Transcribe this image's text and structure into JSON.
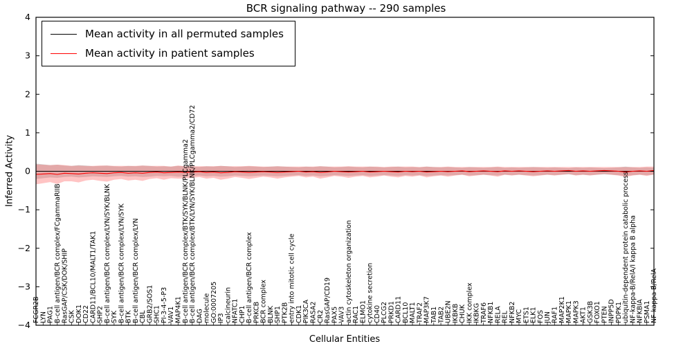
{
  "chart_data": {
    "type": "line",
    "title": "BCR signaling pathway -- 290 samples",
    "xlabel": "Cellular Entities",
    "ylabel": "Inferred Activity",
    "sample_count": 290,
    "ylim": [
      -4,
      4
    ],
    "yticks": [
      -4,
      -3,
      -2,
      -1,
      0,
      1,
      2,
      3,
      4
    ],
    "grid": false,
    "legend_position": "upper left",
    "categories": [
      "FCGR2B",
      "LYN",
      "PAG1",
      "B-cell antigen/BCR complex/FCgammaRIIB",
      "RasGAP/CSK/DOK/SHIP",
      "CSK",
      "DOK1",
      "CD22",
      "CARD11/BCL10/MALT1/TAK1",
      "SHP2",
      "B-cell antigen/BCR complex/LYN/SYK/BLNK",
      "SYK",
      "B-cell antigen/BCR complex/LYN/SYK",
      "BTK",
      "B-cell antigen/BCR complex/LYN",
      "CBL",
      "GRB2/SOS1",
      "SHC1",
      "PI-3-4-5-P3",
      "VAV1",
      "MAP4K1",
      "B-cell antigen/BCR complex/BTK/SYK/BLNK/PLCgamma2",
      "B-cell antigen/BCR complex/BTK/LYN/SYK/BLNK/PLCgamma2/CD72",
      "DAG",
      "molecule",
      "GO:0007205",
      "IP3",
      "calcineurin",
      "NFATC1",
      "CHP1",
      "B-cell antigen/BCR complex",
      "PRKCB",
      "BCR complex",
      "BLNK",
      "SHP1",
      "PTK2B",
      "entry into mitotic cell cycle",
      "CDK1",
      "PIK3CA",
      "RASA2",
      "CR2",
      "RasGAP/CD19",
      "PAX5",
      "VAV3",
      "actin cytoskeleton organization",
      "RAC1",
      "ELMO1",
      "cytokine secretion",
      "CD40",
      "PLCG2",
      "PRKD1",
      "CARD11",
      "BCL10",
      "MALT1",
      "TRAF2",
      "MAP3K7",
      "TAB1",
      "TAB2",
      "UBE2N",
      "IKBKB",
      "CHUK",
      "IKK complex",
      "IKBKG",
      "TRAF6",
      "NFKB1",
      "RELA",
      "REL",
      "NFKB2",
      "MYC",
      "ETS1",
      "ELK1",
      "FOS",
      "JUN",
      "RAF1",
      "MAP2K1",
      "MAPK1",
      "MAPK3",
      "AKT1",
      "GSK3B",
      "FOXO1",
      "PTEN",
      "INPP5D",
      "PDPK1",
      "ubiquitin-dependent protein catabolic process",
      "NF-kappa-B/RelA/I kappa B alpha",
      "NFKBIA",
      "PSMA1",
      "NF-kappa-B/RelA"
    ],
    "series": [
      {
        "name": "Mean activity in all permuted samples",
        "color": "#000000",
        "band_color": "#bdbdbd",
        "band_opacity": 0.65,
        "mean": 0,
        "band_halfwidth": [
          0.2,
          0.18,
          0.16,
          0.17,
          0.15,
          0.14,
          0.16,
          0.15,
          0.13,
          0.14,
          0.15,
          0.13,
          0.12,
          0.14,
          0.13,
          0.15,
          0.14,
          0.12,
          0.13,
          0.12,
          0.14,
          0.13,
          0.12,
          0.11,
          0.13,
          0.12,
          0.14,
          0.13,
          0.11,
          0.12,
          0.13,
          0.12,
          0.11,
          0.12,
          0.13,
          0.12,
          0.11,
          0.1,
          0.12,
          0.11,
          0.13,
          0.12,
          0.1,
          0.11,
          0.12,
          0.11,
          0.1,
          0.12,
          0.11,
          0.1,
          0.11,
          0.12,
          0.1,
          0.11,
          0.1,
          0.12,
          0.11,
          0.1,
          0.11,
          0.1,
          0.09,
          0.11,
          0.1,
          0.09,
          0.1,
          0.11,
          0.09,
          0.1,
          0.09,
          0.1,
          0.11,
          0.1,
          0.09,
          0.1,
          0.09,
          0.08,
          0.1,
          0.09,
          0.1,
          0.09,
          0.08,
          0.09,
          0.1,
          0.12,
          0.1,
          0.09,
          0.1,
          0.09
        ]
      },
      {
        "name": "Mean activity in patient samples",
        "color": "#ff0000",
        "band_color": "#ff5555",
        "band_opacity": 0.35,
        "mean": [
          -0.08,
          -0.07,
          -0.06,
          -0.08,
          -0.05,
          -0.06,
          -0.07,
          -0.05,
          -0.04,
          -0.05,
          -0.06,
          -0.04,
          -0.03,
          -0.05,
          -0.04,
          -0.05,
          -0.03,
          -0.02,
          -0.04,
          -0.03,
          -0.02,
          -0.03,
          -0.02,
          -0.01,
          -0.03,
          -0.02,
          -0.04,
          -0.03,
          -0.01,
          -0.02,
          -0.03,
          -0.02,
          -0.01,
          -0.02,
          -0.03,
          -0.02,
          -0.01,
          0.0,
          -0.02,
          -0.01,
          -0.03,
          -0.02,
          0.0,
          -0.01,
          -0.02,
          -0.01,
          0.0,
          -0.02,
          -0.01,
          0.0,
          -0.01,
          -0.02,
          0.0,
          -0.01,
          0.0,
          -0.02,
          -0.01,
          0.0,
          -0.01,
          0.0,
          0.01,
          -0.01,
          0.0,
          0.01,
          0.0,
          -0.01,
          0.01,
          0.0,
          0.01,
          0.0,
          -0.01,
          0.0,
          0.01,
          0.0,
          0.01,
          0.02,
          0.0,
          0.01,
          0.0,
          0.01,
          0.02,
          0.01,
          0.0,
          -0.02,
          0.0,
          0.01,
          0.0,
          0.02
        ],
        "band_halfwidth": [
          0.26,
          0.24,
          0.22,
          0.25,
          0.21,
          0.2,
          0.22,
          0.19,
          0.18,
          0.2,
          0.21,
          0.18,
          0.17,
          0.19,
          0.18,
          0.2,
          0.17,
          0.16,
          0.18,
          0.15,
          0.17,
          0.16,
          0.15,
          0.14,
          0.16,
          0.15,
          0.18,
          0.16,
          0.14,
          0.15,
          0.17,
          0.15,
          0.13,
          0.14,
          0.16,
          0.14,
          0.13,
          0.12,
          0.14,
          0.13,
          0.16,
          0.14,
          0.12,
          0.13,
          0.15,
          0.13,
          0.12,
          0.14,
          0.13,
          0.11,
          0.13,
          0.14,
          0.12,
          0.13,
          0.11,
          0.14,
          0.12,
          0.11,
          0.13,
          0.11,
          0.1,
          0.12,
          0.11,
          0.1,
          0.11,
          0.13,
          0.1,
          0.11,
          0.1,
          0.11,
          0.12,
          0.11,
          0.1,
          0.11,
          0.1,
          0.09,
          0.11,
          0.1,
          0.11,
          0.1,
          0.09,
          0.1,
          0.11,
          0.13,
          0.11,
          0.1,
          0.12,
          0.1
        ]
      }
    ]
  }
}
